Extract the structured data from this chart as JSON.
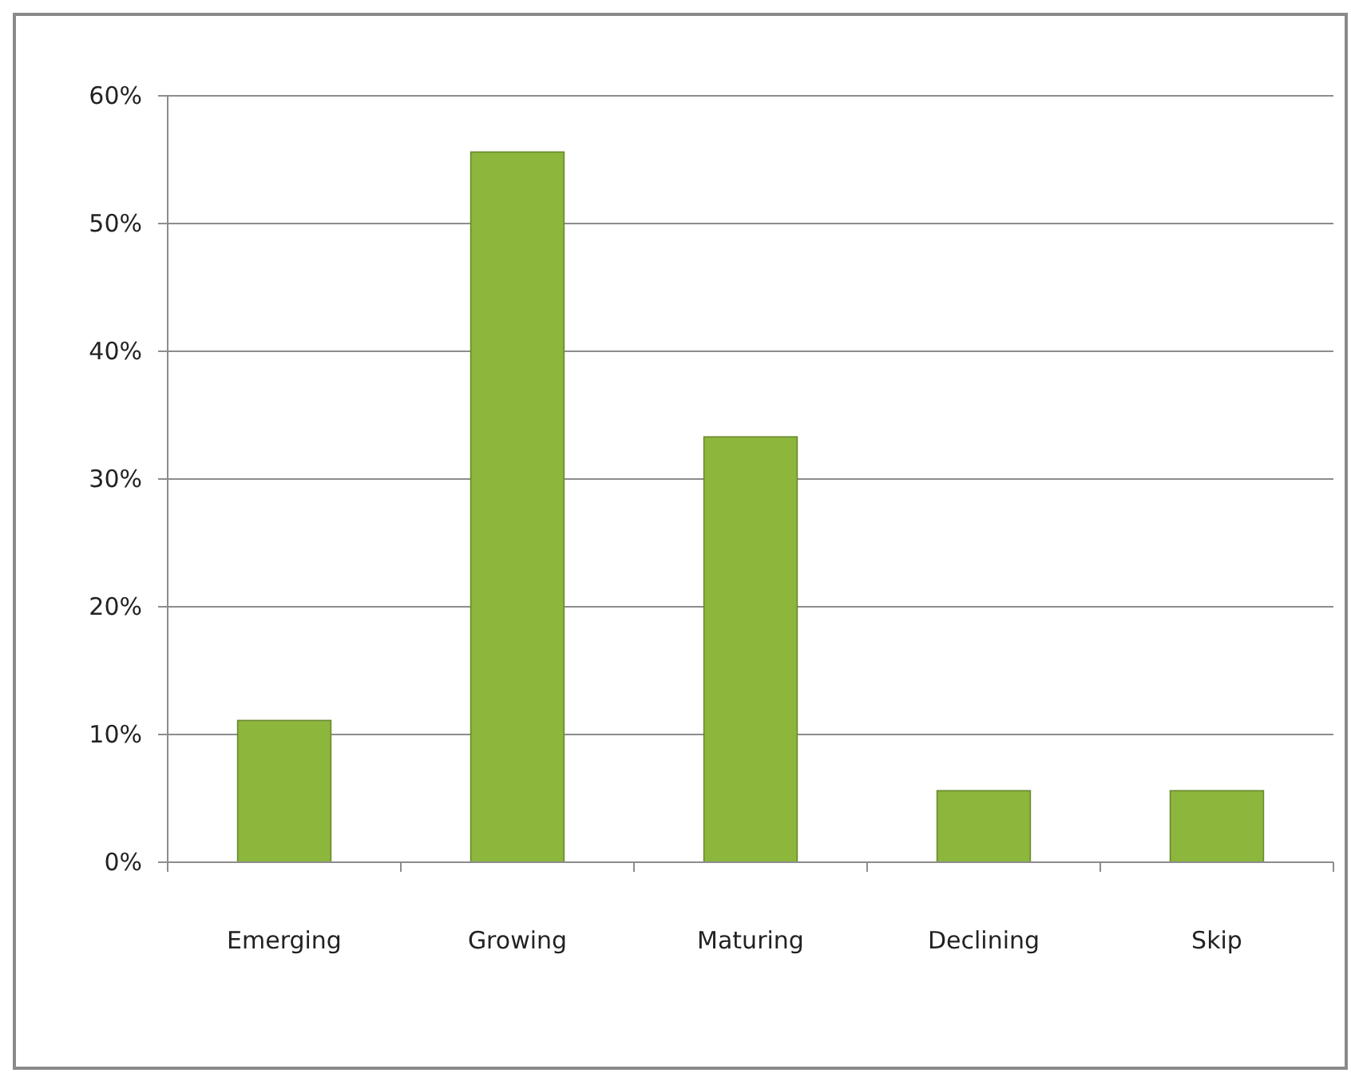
{
  "chart_data": {
    "type": "bar",
    "categories": [
      "Emerging",
      "Growing",
      "Maturing",
      "Declining",
      "Skip"
    ],
    "values": [
      11.1,
      55.6,
      33.3,
      5.6,
      5.6
    ],
    "color": "#8cb63c",
    "ylim": [
      0,
      60
    ],
    "yticks": [
      {
        "value": 0,
        "label": "0%"
      },
      {
        "value": 10,
        "label": "10%"
      },
      {
        "value": 20,
        "label": "20%"
      },
      {
        "value": 30,
        "label": "30%"
      },
      {
        "value": 40,
        "label": "40%"
      },
      {
        "value": 50,
        "label": "50%"
      },
      {
        "value": 60,
        "label": "60%"
      }
    ],
    "grid": "y"
  }
}
